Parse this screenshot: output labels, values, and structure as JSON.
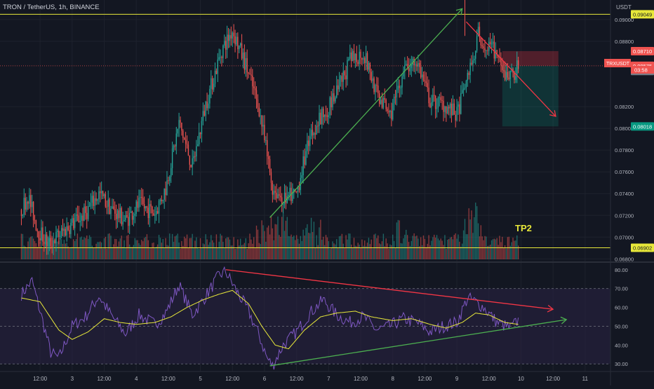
{
  "header": {
    "symbol_title": "TRON / TetherUS, 1h, BINANCE",
    "currency": "USDT"
  },
  "annotations": {
    "tp2_label": "TP2",
    "ticker_tag": "TRXUSDT",
    "countdown": "03:58"
  },
  "colors": {
    "background": "#131722",
    "bull": "#26a69a",
    "bear": "#ef5350",
    "yellow_line": "#e8e83a",
    "green_trend": "#4caf50",
    "red_trend": "#f23645",
    "rsi_line": "#7e57c2",
    "rsi_ma": "#e8e83a",
    "rsi_band": "#2a2244"
  },
  "chart_data": [
    {
      "type": "candlestick",
      "name": "price",
      "ylim": [
        0.0677,
        0.0918
      ],
      "price_labels": [
        "0.09000",
        "0.08800",
        "0.08200",
        "0.08000",
        "0.07800",
        "0.07600",
        "0.07400",
        "0.07200",
        "0.07000",
        "0.06800"
      ],
      "levels": [
        {
          "label": "0.09049",
          "value": 0.09049,
          "kind": "yellow"
        },
        {
          "label": "0.08710",
          "value": 0.0871,
          "kind": "red"
        },
        {
          "label": "0.08575",
          "value": 0.08575,
          "kind": "current"
        },
        {
          "label": "0.08573",
          "value": 0.08573,
          "kind": "gray"
        },
        {
          "label": "0.08018",
          "value": 0.08018,
          "kind": "green"
        },
        {
          "label": "0.06902",
          "value": 0.06902,
          "kind": "yellow"
        }
      ],
      "key_points": [
        {
          "t": 0,
          "v": 0.0725
        },
        {
          "t": 5,
          "v": 0.0738
        },
        {
          "t": 12,
          "v": 0.0708
        },
        {
          "t": 20,
          "v": 0.0693
        },
        {
          "t": 28,
          "v": 0.0702
        },
        {
          "t": 38,
          "v": 0.0712
        },
        {
          "t": 48,
          "v": 0.0722
        },
        {
          "t": 58,
          "v": 0.074
        },
        {
          "t": 68,
          "v": 0.0725
        },
        {
          "t": 78,
          "v": 0.0715
        },
        {
          "t": 88,
          "v": 0.073
        },
        {
          "t": 100,
          "v": 0.0722
        },
        {
          "t": 108,
          "v": 0.0745
        },
        {
          "t": 118,
          "v": 0.0805
        },
        {
          "t": 128,
          "v": 0.0765
        },
        {
          "t": 138,
          "v": 0.0822
        },
        {
          "t": 150,
          "v": 0.0872
        },
        {
          "t": 158,
          "v": 0.089
        },
        {
          "t": 168,
          "v": 0.0858
        },
        {
          "t": 178,
          "v": 0.0818
        },
        {
          "t": 188,
          "v": 0.0745
        },
        {
          "t": 196,
          "v": 0.0735
        },
        {
          "t": 206,
          "v": 0.074
        },
        {
          "t": 216,
          "v": 0.0795
        },
        {
          "t": 226,
          "v": 0.0812
        },
        {
          "t": 236,
          "v": 0.0832
        },
        {
          "t": 246,
          "v": 0.0862
        },
        {
          "t": 256,
          "v": 0.087
        },
        {
          "t": 266,
          "v": 0.0832
        },
        {
          "t": 276,
          "v": 0.0812
        },
        {
          "t": 286,
          "v": 0.0852
        },
        {
          "t": 296,
          "v": 0.0862
        },
        {
          "t": 306,
          "v": 0.0825
        },
        {
          "t": 316,
          "v": 0.0822
        },
        {
          "t": 326,
          "v": 0.0812
        },
        {
          "t": 338,
          "v": 0.0865
        },
        {
          "t": 342,
          "v": 0.0886
        },
        {
          "t": 348,
          "v": 0.0873
        },
        {
          "t": 354,
          "v": 0.0872
        },
        {
          "t": 360,
          "v": 0.085
        },
        {
          "t": 366,
          "v": 0.0848
        },
        {
          "t": 372,
          "v": 0.0857
        }
      ],
      "volume_ylim": [
        0,
        3.6
      ],
      "x_ticks": [
        {
          "t": 14,
          "label": "12:00"
        },
        {
          "t": 38,
          "label": "3"
        },
        {
          "t": 62,
          "label": "12:00"
        },
        {
          "t": 86,
          "label": "4"
        },
        {
          "t": 110,
          "label": "12:00"
        },
        {
          "t": 134,
          "label": "5"
        },
        {
          "t": 158,
          "label": "12:00"
        },
        {
          "t": 182,
          "label": "6"
        },
        {
          "t": 206,
          "label": "12:00"
        },
        {
          "t": 230,
          "label": "7"
        },
        {
          "t": 254,
          "label": "12:00"
        },
        {
          "t": 278,
          "label": "8"
        },
        {
          "t": 302,
          "label": "12:00"
        },
        {
          "t": 326,
          "label": "9"
        },
        {
          "t": 350,
          "label": "12:00"
        },
        {
          "t": 374,
          "label": "10"
        },
        {
          "t": 398,
          "label": "12:00"
        },
        {
          "t": 422,
          "label": "11"
        }
      ],
      "x_range": [
        -16,
        441
      ],
      "trendlines": [
        {
          "color": "green",
          "from": {
            "t": 186,
            "v": 0.0718
          },
          "to": {
            "t": 330,
            "v": 0.091
          }
        },
        {
          "color": "red",
          "from": {
            "t": 333,
            "v": 0.0898
          },
          "to": {
            "t": 400,
            "v": 0.0811
          }
        }
      ],
      "position_box": {
        "t_start": 360,
        "t_end": 402,
        "entry": 0.08575,
        "stop": 0.0871,
        "target": 0.08018
      }
    },
    {
      "type": "line",
      "name": "rsi",
      "ylim": [
        26,
        84
      ],
      "tick_labels": [
        "80.00",
        "70.00",
        "60.00",
        "50.00",
        "40.00",
        "30.00"
      ],
      "band": [
        30,
        70
      ],
      "midline": 50,
      "key_points": [
        {
          "t": 0,
          "v": 67
        },
        {
          "t": 8,
          "v": 74
        },
        {
          "t": 14,
          "v": 58
        },
        {
          "t": 22,
          "v": 36
        },
        {
          "t": 28,
          "v": 33
        },
        {
          "t": 38,
          "v": 50
        },
        {
          "t": 48,
          "v": 55
        },
        {
          "t": 58,
          "v": 66
        },
        {
          "t": 68,
          "v": 55
        },
        {
          "t": 78,
          "v": 46
        },
        {
          "t": 88,
          "v": 56
        },
        {
          "t": 100,
          "v": 51
        },
        {
          "t": 108,
          "v": 57
        },
        {
          "t": 118,
          "v": 72
        },
        {
          "t": 128,
          "v": 56
        },
        {
          "t": 138,
          "v": 66
        },
        {
          "t": 148,
          "v": 77
        },
        {
          "t": 153,
          "v": 79
        },
        {
          "t": 160,
          "v": 70
        },
        {
          "t": 170,
          "v": 58
        },
        {
          "t": 178,
          "v": 45
        },
        {
          "t": 184,
          "v": 33
        },
        {
          "t": 188,
          "v": 29
        },
        {
          "t": 196,
          "v": 40
        },
        {
          "t": 206,
          "v": 47
        },
        {
          "t": 216,
          "v": 57
        },
        {
          "t": 226,
          "v": 64
        },
        {
          "t": 236,
          "v": 56
        },
        {
          "t": 246,
          "v": 52
        },
        {
          "t": 256,
          "v": 55
        },
        {
          "t": 266,
          "v": 48
        },
        {
          "t": 276,
          "v": 50
        },
        {
          "t": 286,
          "v": 54
        },
        {
          "t": 296,
          "v": 52
        },
        {
          "t": 306,
          "v": 47
        },
        {
          "t": 316,
          "v": 50
        },
        {
          "t": 326,
          "v": 52
        },
        {
          "t": 334,
          "v": 65
        },
        {
          "t": 340,
          "v": 63
        },
        {
          "t": 346,
          "v": 60
        },
        {
          "t": 356,
          "v": 52
        },
        {
          "t": 366,
          "v": 49
        },
        {
          "t": 372,
          "v": 53
        }
      ],
      "ma_key_points": [
        {
          "t": 0,
          "v": 65
        },
        {
          "t": 14,
          "v": 63
        },
        {
          "t": 28,
          "v": 48
        },
        {
          "t": 38,
          "v": 43
        },
        {
          "t": 50,
          "v": 47
        },
        {
          "t": 62,
          "v": 54
        },
        {
          "t": 74,
          "v": 52
        },
        {
          "t": 86,
          "v": 51
        },
        {
          "t": 100,
          "v": 52
        },
        {
          "t": 112,
          "v": 55
        },
        {
          "t": 124,
          "v": 60
        },
        {
          "t": 136,
          "v": 64
        },
        {
          "t": 148,
          "v": 67
        },
        {
          "t": 158,
          "v": 69
        },
        {
          "t": 170,
          "v": 62
        },
        {
          "t": 180,
          "v": 50
        },
        {
          "t": 190,
          "v": 40
        },
        {
          "t": 200,
          "v": 38
        },
        {
          "t": 212,
          "v": 48
        },
        {
          "t": 224,
          "v": 55
        },
        {
          "t": 236,
          "v": 57
        },
        {
          "t": 250,
          "v": 58
        },
        {
          "t": 262,
          "v": 55
        },
        {
          "t": 278,
          "v": 53
        },
        {
          "t": 292,
          "v": 54
        },
        {
          "t": 306,
          "v": 51
        },
        {
          "t": 318,
          "v": 49
        },
        {
          "t": 330,
          "v": 52
        },
        {
          "t": 340,
          "v": 57
        },
        {
          "t": 350,
          "v": 56
        },
        {
          "t": 362,
          "v": 52
        },
        {
          "t": 372,
          "v": 51
        }
      ],
      "trendlines": [
        {
          "color": "red",
          "from": {
            "t": 153,
            "v": 80
          },
          "to": {
            "t": 398,
            "v": 59
          }
        },
        {
          "color": "green",
          "from": {
            "t": 186,
            "v": 29
          },
          "to": {
            "t": 408,
            "v": 53.5
          }
        }
      ]
    }
  ]
}
